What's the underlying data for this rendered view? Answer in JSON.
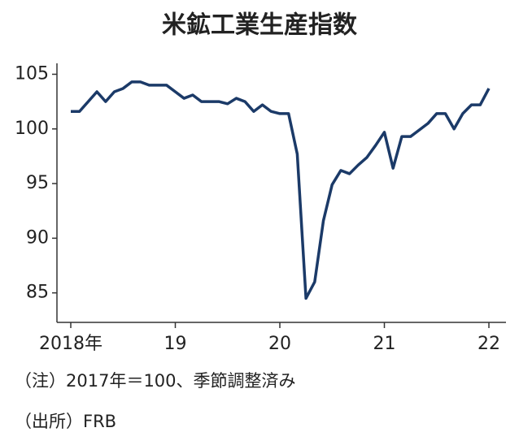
{
  "chart_data": {
    "type": "line",
    "title": "米鉱工業生産指数",
    "categories": [
      "2018年",
      null,
      null,
      null,
      null,
      null,
      null,
      null,
      null,
      null,
      null,
      null,
      "19",
      null,
      null,
      null,
      null,
      null,
      null,
      null,
      null,
      null,
      null,
      null,
      "20",
      null,
      null,
      null,
      null,
      null,
      null,
      null,
      null,
      null,
      null,
      null,
      "21",
      null,
      null,
      null,
      null,
      null,
      null,
      null,
      null,
      null,
      null,
      null,
      "22"
    ],
    "series": [
      {
        "name": "米鉱工業生産指数",
        "color": "#1b3a68",
        "values": [
          101.6,
          101.6,
          102.5,
          103.4,
          102.5,
          103.4,
          103.7,
          104.3,
          104.3,
          104.0,
          104.0,
          104.0,
          103.4,
          102.8,
          103.1,
          102.5,
          102.5,
          102.5,
          102.3,
          102.8,
          102.5,
          101.6,
          102.2,
          101.6,
          101.4,
          101.4,
          97.7,
          84.5,
          86.0,
          91.6,
          94.9,
          96.2,
          95.9,
          96.7,
          97.4,
          98.5,
          99.7,
          96.4,
          99.3,
          99.3,
          99.9,
          100.5,
          101.4,
          101.4,
          100.0,
          101.4,
          102.2,
          102.2,
          103.7
        ]
      }
    ],
    "ylim": [
      82.3,
      106
    ],
    "yticks": [
      85,
      90,
      95,
      100,
      105
    ],
    "notes": [
      "（注）2017年＝100、季節調整済み",
      "（出所）FRB"
    ]
  }
}
